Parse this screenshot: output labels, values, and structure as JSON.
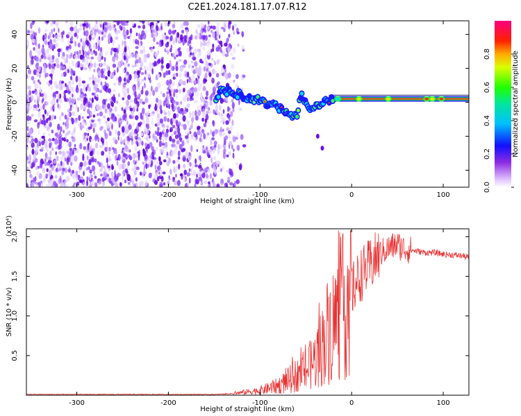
{
  "title": "C2E1.2024.181.17.07.R12",
  "chart_data": [
    {
      "type": "heatmap",
      "xlabel": "Height of straight line (km)",
      "ylabel": "Frequency (Hz)",
      "xlim": [
        -355,
        128
      ],
      "ylim": [
        -50,
        48
      ],
      "xticks": [
        -300,
        -200,
        -100,
        0,
        100
      ],
      "yticks": [
        -40,
        -20,
        0,
        20,
        40
      ],
      "colorbar": {
        "label": "Normalized spectral amplitude",
        "range": [
          0.0,
          1.0
        ],
        "ticks": [
          "0.0",
          "0.2",
          "0.4",
          "0.6",
          "0.8"
        ],
        "colormap": "rainbow (white-violet-blue-cyan-green-yellow-red-magenta)"
      },
      "noise_region_x": [
        -355,
        -135
      ],
      "signal_track": [
        {
          "x": -145,
          "y": 7
        },
        {
          "x": -130,
          "y": 6
        },
        {
          "x": -115,
          "y": 3
        },
        {
          "x": -100,
          "y": 1
        },
        {
          "x": -85,
          "y": -2
        },
        {
          "x": -70,
          "y": -6
        },
        {
          "x": -60,
          "y": -9
        },
        {
          "x": -55,
          "y": 5
        },
        {
          "x": -45,
          "y": -5
        },
        {
          "x": -38,
          "y": -2
        },
        {
          "x": -25,
          "y": 1
        },
        {
          "x": -10,
          "y": 2
        },
        {
          "x": 0,
          "y": 2
        },
        {
          "x": 50,
          "y": 2
        },
        {
          "x": 80,
          "y": 2.5
        },
        {
          "x": 100,
          "y": 2
        },
        {
          "x": 128,
          "y": 2
        }
      ],
      "outliers": [
        {
          "x": -37,
          "y": -20
        },
        {
          "x": -32,
          "y": -27
        }
      ]
    },
    {
      "type": "line",
      "xlabel": "Height of straight line (km)",
      "ylabel": "SNR (10 * v/v)",
      "y_multiplier": "(x10⁴)",
      "xlim": [
        -355,
        128
      ],
      "ylim": [
        0,
        2.1
      ],
      "xticks": [
        -300,
        -200,
        -100,
        0,
        100
      ],
      "yticks": [
        0.5,
        1.0,
        1.5,
        2.0
      ],
      "color": "#e83232",
      "series": [
        {
          "x": [
            -355,
            -300,
            -250,
            -200,
            -150,
            -130,
            -115,
            -100,
            -90,
            -80,
            -70,
            -60,
            -50,
            -45,
            -40,
            -35,
            -30,
            -25,
            -20,
            -15,
            -10,
            -5,
            0,
            5,
            10,
            15,
            20,
            25,
            30,
            35,
            40,
            45,
            50,
            55,
            60,
            70,
            80,
            90,
            100,
            110,
            120,
            128
          ],
          "y": [
            0.01,
            0.01,
            0.01,
            0.01,
            0.01,
            0.02,
            0.04,
            0.06,
            0.09,
            0.12,
            0.18,
            0.25,
            0.32,
            0.38,
            0.45,
            0.55,
            0.7,
            0.85,
            0.9,
            1.0,
            1.1,
            1.2,
            1.3,
            1.42,
            1.52,
            1.58,
            1.63,
            1.7,
            1.78,
            1.82,
            1.85,
            1.88,
            1.9,
            1.86,
            1.84,
            1.82,
            1.8,
            1.8,
            1.78,
            1.77,
            1.76,
            1.74
          ]
        }
      ]
    }
  ]
}
